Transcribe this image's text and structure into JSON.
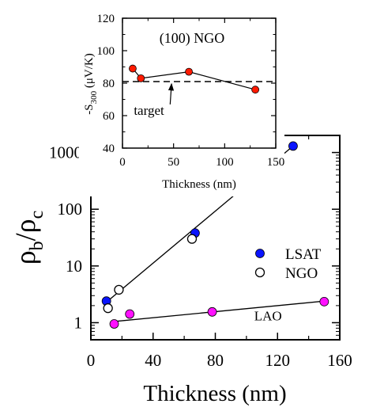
{
  "chart_data": [
    {
      "id": "main",
      "type": "scatter",
      "xlabel": "Thickness (nm)",
      "ylabel_main": "ρ",
      "ylabel_sub1": "b",
      "ylabel_sep": "/ρ",
      "ylabel_sub2": "c",
      "yscale": "log",
      "xlim": [
        0,
        160
      ],
      "ylim": [
        0.5,
        2000
      ],
      "xticks": [
        0,
        40,
        80,
        120,
        160
      ],
      "yticks": [
        1,
        10,
        100,
        1000
      ],
      "grid": false,
      "legend": "right",
      "series": [
        {
          "name": "LSAT",
          "color": "#0a14ff",
          "marker": "filled-circle",
          "points": [
            [
              10,
              2.4
            ],
            [
              67,
              38
            ],
            [
              130,
              1300
            ]
          ],
          "fit": [
            [
              10,
              2.3
            ],
            [
              130,
              1300
            ]
          ]
        },
        {
          "name": "NGO",
          "color": "#000000",
          "marker": "open-circle",
          "points": [
            [
              11,
              1.8
            ],
            [
              18,
              3.8
            ],
            [
              65,
              30
            ]
          ],
          "fit": null
        },
        {
          "name": "LAO",
          "color": "#ff10ff",
          "marker": "filled-circle",
          "points": [
            [
              15,
              0.95
            ],
            [
              25,
              1.42
            ],
            [
              78,
              1.55
            ],
            [
              150,
              2.35
            ]
          ],
          "fit": [
            [
              15,
              1.05
            ],
            [
              150,
              2.4
            ]
          ]
        }
      ],
      "annotations": [
        {
          "text": "LAO",
          "x": 105,
          "y": 1.1
        }
      ]
    },
    {
      "id": "inset",
      "type": "scatter",
      "title": "(100) NGO",
      "xlabel": "Thickness (nm)",
      "ylabel_pre": "-S",
      "ylabel_sub": "300",
      "ylabel_unit": "(μV/K)",
      "xlim": [
        0,
        150
      ],
      "ylim": [
        40,
        120
      ],
      "xticks": [
        0,
        50,
        100,
        150
      ],
      "yticks": [
        40,
        60,
        80,
        100,
        120
      ],
      "grid": false,
      "series": [
        {
          "name": "",
          "color": "#ff1a00",
          "marker": "filled-circle",
          "points": [
            [
              10,
              89
            ],
            [
              18,
              83
            ],
            [
              65,
              87
            ],
            [
              130,
              76
            ]
          ]
        }
      ],
      "reference_line": {
        "value": 81,
        "style": "dashed"
      },
      "annotations": [
        {
          "text": "target",
          "x": 25,
          "y": 63
        }
      ]
    }
  ]
}
